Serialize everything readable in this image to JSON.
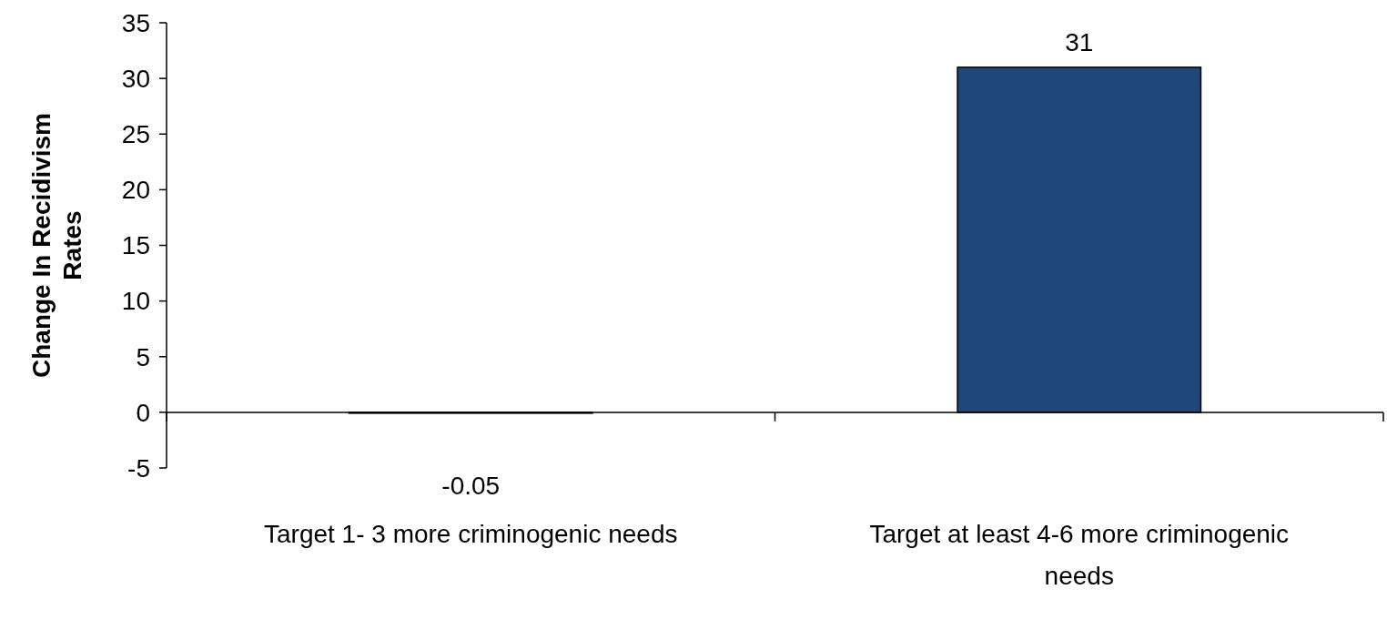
{
  "chart_data": {
    "type": "bar",
    "ylabel": "Change In Recidivism Rates",
    "categories": [
      "Target 1- 3 more criminogenic needs",
      "Target at least 4-6 more criminogenic needs"
    ],
    "values": [
      -0.05,
      31
    ],
    "color": "#1d4877",
    "ylim": [
      -5,
      35
    ],
    "yticks": [
      -5,
      0,
      5,
      10,
      15,
      20,
      25,
      30,
      35
    ],
    "data_labels": true
  }
}
